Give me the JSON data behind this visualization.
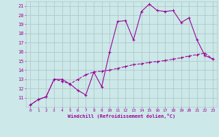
{
  "line1_x": [
    0,
    1,
    2,
    3,
    4,
    5,
    6,
    7,
    8,
    9,
    10,
    11,
    12,
    13,
    14,
    15,
    16,
    17,
    18,
    19,
    20,
    21,
    22,
    23
  ],
  "line1_y": [
    10.2,
    10.8,
    11.1,
    13.0,
    13.0,
    12.5,
    11.8,
    11.3,
    13.8,
    12.2,
    16.0,
    19.3,
    19.4,
    17.3,
    20.4,
    21.2,
    20.5,
    20.4,
    20.5,
    19.2,
    19.7,
    17.3,
    15.6,
    15.2
  ],
  "line2_x": [
    0,
    1,
    2,
    3,
    4,
    5,
    6,
    7,
    8,
    9,
    10,
    11,
    12,
    13,
    14,
    15,
    16,
    17,
    18,
    19,
    20,
    21,
    22,
    23
  ],
  "line2_y": [
    10.2,
    10.8,
    11.1,
    13.0,
    12.8,
    12.5,
    13.0,
    13.5,
    13.8,
    13.9,
    14.0,
    14.2,
    14.4,
    14.6,
    14.7,
    14.85,
    14.95,
    15.05,
    15.2,
    15.35,
    15.55,
    15.7,
    15.85,
    15.2
  ],
  "line_color": "#990099",
  "bg_color": "#cce8e8",
  "grid_color": "#b0c8c8",
  "xlabel": "Windchill (Refroidissement éolien,°C)",
  "xlim_min": -0.5,
  "xlim_max": 23.5,
  "ylim_min": 10.0,
  "ylim_max": 21.5,
  "yticks": [
    11,
    12,
    13,
    14,
    15,
    16,
    17,
    18,
    19,
    20,
    21
  ],
  "xticks": [
    0,
    1,
    2,
    3,
    4,
    5,
    6,
    7,
    8,
    9,
    10,
    11,
    12,
    13,
    14,
    15,
    16,
    17,
    18,
    19,
    20,
    21,
    22,
    23
  ]
}
